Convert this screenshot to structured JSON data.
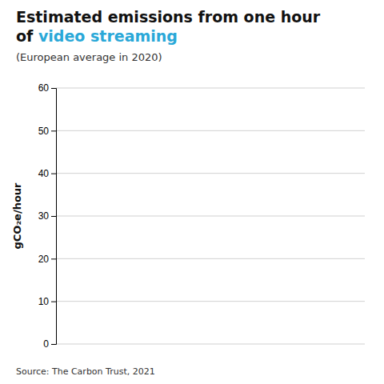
{
  "chart_data": {
    "type": "bar",
    "title": [
      "Estimated emissions from one hour",
      "of ",
      "video streaming"
    ],
    "title_colors": [
      "#111111",
      "#111111",
      "#2aa8d8"
    ],
    "subtitle": "(European average in 2020)",
    "ylabel": "gCO₂e/hour",
    "annotations": [
      "Source: The Carbon Trust, 2021"
    ],
    "ylim": [
      0,
      60
    ],
    "yticks": [
      0,
      10,
      20,
      30,
      40,
      50,
      60
    ],
    "grid": true,
    "tick_labels": "y"
  }
}
